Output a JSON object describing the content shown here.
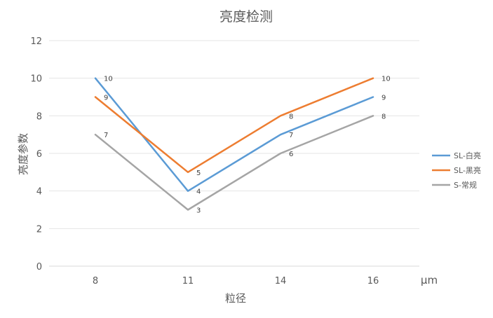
{
  "chart_data": {
    "type": "line",
    "title": "亮度检测",
    "xlabel": "粒径",
    "ylabel": "亮度参数",
    "x_unit": "μm",
    "categories": [
      "8",
      "11",
      "14",
      "16"
    ],
    "ylim": [
      0,
      12
    ],
    "yticks": [
      0,
      2,
      4,
      6,
      8,
      10,
      12
    ],
    "grid": true,
    "legend_position": "right",
    "series": [
      {
        "name": "SL-白亮",
        "color": "#5b9bd5",
        "values": [
          10,
          4,
          7,
          9
        ]
      },
      {
        "name": "SL-黑亮",
        "color": "#ed7d31",
        "values": [
          9,
          5,
          8,
          10
        ]
      },
      {
        "name": "S-常规",
        "color": "#a5a5a5",
        "values": [
          7,
          3,
          6,
          8
        ]
      }
    ]
  }
}
